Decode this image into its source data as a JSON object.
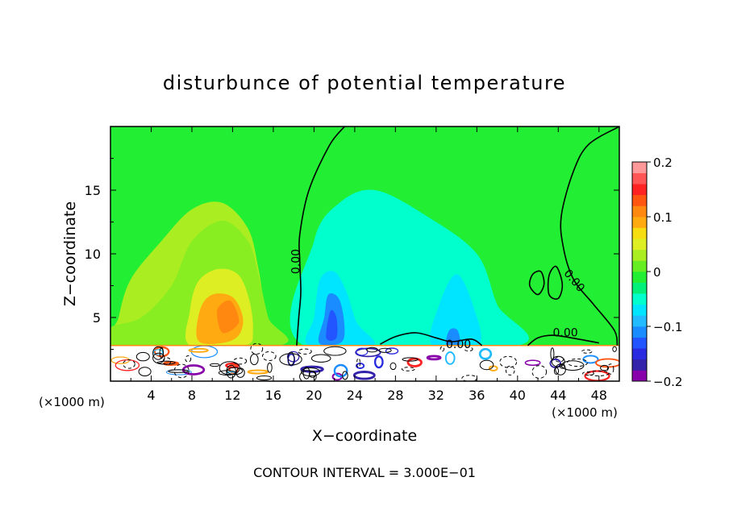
{
  "chart_data": {
    "type": "heatmap",
    "title": "disturbunce of potential temperature",
    "xlabel": "X−coordinate",
    "ylabel": "Z−coordinate",
    "x_unit_left": "(×1000 m)",
    "x_unit_right": "(×1000 m)",
    "xlim": [
      0,
      50
    ],
    "ylim": [
      0,
      20
    ],
    "xticks": [
      4,
      8,
      12,
      16,
      20,
      24,
      28,
      32,
      36,
      40,
      44,
      48
    ],
    "xtick_labels": [
      "4",
      "8",
      "12",
      "16",
      "20",
      "24",
      "28",
      "32",
      "36",
      "40",
      "44",
      "48"
    ],
    "yticks": [
      5,
      10,
      15
    ],
    "ytick_labels": [
      "5",
      "10",
      "15"
    ],
    "footer": "CONTOUR INTERVAL = 3.000E−01",
    "colorbar": {
      "range": [
        -0.2,
        0.2
      ],
      "tick_values": [
        0.2,
        0.1,
        0,
        -0.1,
        -0.2
      ],
      "tick_labels": [
        "0.2",
        "0.1",
        "0",
        "−0.1",
        "−0.2"
      ],
      "colors": [
        "#8800aa",
        "#3322aa",
        "#2a2ae0",
        "#2255ff",
        "#1a8cff",
        "#22bbff",
        "#00e5ff",
        "#00ffcc",
        "#00f07a",
        "#22ee33",
        "#66ee22",
        "#aaee22",
        "#ddee22",
        "#f5dd11",
        "#ffaa11",
        "#ff8811",
        "#ff5511",
        "#ff2222",
        "#ff5555",
        "#ff9999"
      ]
    },
    "contour_labels": [
      {
        "text": "0.00",
        "x": 18.6,
        "y": 9.4
      },
      {
        "text": "0.00",
        "x": 45.3,
        "y": 7.7
      },
      {
        "text": "0.00",
        "x": 44.7,
        "y": 3.5
      },
      {
        "text": "0.00",
        "x": 34.2,
        "y": 2.6
      }
    ],
    "fields": [
      {
        "name": "yellow-green warm region",
        "color": "#aaee22",
        "points": [
          [
            0.5,
            2.8
          ],
          [
            0.8,
            5
          ],
          [
            2,
            8
          ],
          [
            5,
            11
          ],
          [
            8,
            13.5
          ],
          [
            11,
            14
          ],
          [
            13.5,
            12
          ],
          [
            14.5,
            9
          ],
          [
            15,
            6
          ],
          [
            14.8,
            3
          ],
          [
            12,
            2.8
          ]
        ]
      },
      {
        "name": "light yellow-green band",
        "color": "#88ee22",
        "points": [
          [
            0,
            2.8
          ],
          [
            0,
            4.2
          ],
          [
            3,
            5
          ],
          [
            6,
            7.5
          ],
          [
            8,
            11
          ],
          [
            11,
            12.6
          ],
          [
            13.5,
            11
          ],
          [
            14.5,
            8.5
          ],
          [
            15.5,
            5
          ],
          [
            16.5,
            2.8
          ]
        ]
      },
      {
        "name": "yellow warm core",
        "color": "#ddee22",
        "points": [
          [
            7.8,
            2.8
          ],
          [
            7.8,
            5.5
          ],
          [
            8.6,
            7.8
          ],
          [
            10.5,
            8.8
          ],
          [
            12.5,
            8.4
          ],
          [
            13.6,
            6.5
          ],
          [
            14,
            4
          ],
          [
            13.2,
            2.8
          ]
        ]
      },
      {
        "name": "orange warm core",
        "color": "#ffaa11",
        "points": [
          [
            8.6,
            3.2
          ],
          [
            8.8,
            5.6
          ],
          [
            10,
            6.8
          ],
          [
            12,
            6.6
          ],
          [
            13,
            5
          ],
          [
            12.6,
            3.6
          ],
          [
            11,
            3
          ]
        ]
      },
      {
        "name": "dark orange warm peak",
        "color": "#ff8811",
        "points": [
          [
            11,
            3.8
          ],
          [
            10.5,
            5.6
          ],
          [
            11.8,
            6.3
          ],
          [
            12.6,
            4.6
          ]
        ]
      },
      {
        "name": "cold cyan-green region",
        "color": "#00ffcc",
        "points": [
          [
            19,
            2.8
          ],
          [
            20,
            11
          ],
          [
            22.5,
            14
          ],
          [
            26,
            15
          ],
          [
            31,
            13
          ],
          [
            36,
            10
          ],
          [
            38,
            6
          ],
          [
            40,
            2.8
          ]
        ]
      },
      {
        "name": "cyan cold core left",
        "color": "#00e5ff",
        "points": [
          [
            19.5,
            2.8
          ],
          [
            20,
            5
          ],
          [
            20.6,
            8
          ],
          [
            22,
            8.6
          ],
          [
            23.2,
            7
          ],
          [
            24.2,
            4.6
          ],
          [
            25.8,
            2.8
          ]
        ]
      },
      {
        "name": "cyan cold core right",
        "color": "#00e5ff",
        "points": [
          [
            31.6,
            2.8
          ],
          [
            32.3,
            6
          ],
          [
            34,
            8.4
          ],
          [
            35.6,
            6
          ],
          [
            36.2,
            2.8
          ]
        ]
      },
      {
        "name": "blue cold core",
        "color": "#1a8cff",
        "points": [
          [
            20.5,
            3
          ],
          [
            21,
            5
          ],
          [
            21.4,
            6.8
          ],
          [
            22.5,
            6.4
          ],
          [
            23,
            4.2
          ],
          [
            22.6,
            3
          ]
        ]
      },
      {
        "name": "deep blue cold core",
        "color": "#2255ff",
        "points": [
          [
            21.2,
            3.4
          ],
          [
            21.6,
            5.5
          ],
          [
            22.2,
            5
          ],
          [
            22.2,
            3.4
          ]
        ]
      },
      {
        "name": "blue small cold core",
        "color": "#1a8cff",
        "points": [
          [
            33,
            2.8
          ],
          [
            33.3,
            4
          ],
          [
            34.1,
            4
          ],
          [
            34.3,
            2.8
          ]
        ]
      }
    ],
    "contour_lines": [
      {
        "name": "zero contour left",
        "points": [
          [
            18.3,
            2.8
          ],
          [
            18.5,
            5
          ],
          [
            18.7,
            7
          ],
          [
            18.6,
            9.5
          ],
          [
            18.6,
            11.5
          ],
          [
            19.5,
            15
          ],
          [
            21.5,
            18.5
          ],
          [
            23,
            20
          ]
        ]
      },
      {
        "name": "zero contour right",
        "points": [
          [
            49.8,
            2.8
          ],
          [
            49.5,
            4
          ],
          [
            47.5,
            6
          ],
          [
            45.5,
            8
          ],
          [
            44.5,
            10.5
          ],
          [
            44.3,
            13
          ],
          [
            45.5,
            16.5
          ],
          [
            47,
            18.6
          ],
          [
            50,
            20
          ]
        ]
      },
      {
        "name": "zero contour lower right",
        "points": [
          [
            41,
            2.8
          ],
          [
            42,
            3.4
          ],
          [
            43.5,
            3.6
          ],
          [
            46,
            3.3
          ],
          [
            48,
            3
          ]
        ]
      },
      {
        "name": "zero contour middle low",
        "points": [
          [
            26.5,
            2.9
          ],
          [
            28,
            3.5
          ],
          [
            30,
            3.8
          ],
          [
            32,
            3.4
          ],
          [
            33.5,
            3.1
          ],
          [
            35.5,
            3.3
          ],
          [
            36.5,
            2.8
          ]
        ]
      }
    ],
    "closed_contours": [
      {
        "name": "small closed contour 1",
        "points": [
          [
            41.2,
            7.5
          ],
          [
            41.5,
            8.4
          ],
          [
            42.3,
            8.6
          ],
          [
            42.6,
            7.6
          ],
          [
            42,
            6.8
          ]
        ]
      },
      {
        "name": "small closed contour 2",
        "points": [
          [
            43.1,
            6.8
          ],
          [
            43.1,
            8.3
          ],
          [
            43.8,
            9
          ],
          [
            44.4,
            7.6
          ],
          [
            44,
            6.5
          ]
        ]
      }
    ],
    "noisy_surface_layer": {
      "name": "noisy surface layer",
      "z_top": 2.8
    }
  }
}
